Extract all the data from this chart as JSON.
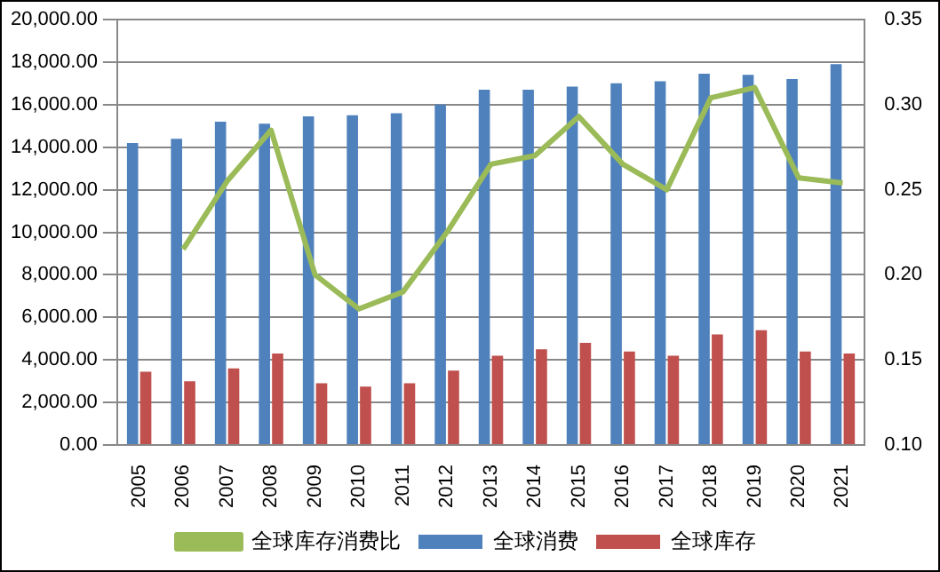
{
  "chart_data": {
    "type": "bar",
    "categories": [
      "2005",
      "2006",
      "2007",
      "2008",
      "2009",
      "2010",
      "2011",
      "2012",
      "2013",
      "2014",
      "2015",
      "2016",
      "2017",
      "2018",
      "2019",
      "2020",
      "2021"
    ],
    "series": [
      {
        "name": "全球消费",
        "color": "#4f81bd",
        "values": [
          14200,
          14400,
          15200,
          15100,
          15450,
          15500,
          15600,
          16000,
          16700,
          16700,
          16850,
          17000,
          17100,
          17450,
          17400,
          17200,
          17900
        ]
      },
      {
        "name": "全球库存",
        "color": "#c0504d",
        "values": [
          3450,
          3000,
          3600,
          4300,
          2900,
          2750,
          2900,
          3500,
          4200,
          4500,
          4800,
          4400,
          4200,
          5200,
          5400,
          4400,
          4300
        ]
      },
      {
        "name": "全球库存消费比",
        "type": "line",
        "axis": "y2",
        "color": "#9bbb59",
        "values": [
          null,
          0.215,
          0.255,
          0.285,
          0.2,
          0.18,
          0.19,
          0.225,
          0.265,
          0.27,
          0.293,
          0.265,
          0.25,
          0.304,
          0.31,
          0.257,
          0.254
        ]
      }
    ],
    "ylim": [
      0,
      20000
    ],
    "yticks": [
      {
        "value": 0,
        "label": "0.00"
      },
      {
        "value": 2000,
        "label": "2,000.00"
      },
      {
        "value": 4000,
        "label": "4,000.00"
      },
      {
        "value": 6000,
        "label": "6,000.00"
      },
      {
        "value": 8000,
        "label": "8,000.00"
      },
      {
        "value": 10000,
        "label": "10,000.00"
      },
      {
        "value": 12000,
        "label": "12,000.00"
      },
      {
        "value": 14000,
        "label": "14,000.00"
      },
      {
        "value": 16000,
        "label": "16,000.00"
      },
      {
        "value": 18000,
        "label": "18,000.00"
      },
      {
        "value": 20000,
        "label": "20,000.00"
      }
    ],
    "y2lim": [
      0.1,
      0.35
    ],
    "y2ticks": [
      {
        "value": 0.1,
        "label": "0.10"
      },
      {
        "value": 0.15,
        "label": "0.15"
      },
      {
        "value": 0.2,
        "label": "0.20"
      },
      {
        "value": 0.25,
        "label": "0.25"
      },
      {
        "value": 0.3,
        "label": "0.30"
      },
      {
        "value": 0.35,
        "label": "0.35"
      }
    ],
    "grid": "y",
    "legend": "bottom",
    "marker": "none"
  }
}
